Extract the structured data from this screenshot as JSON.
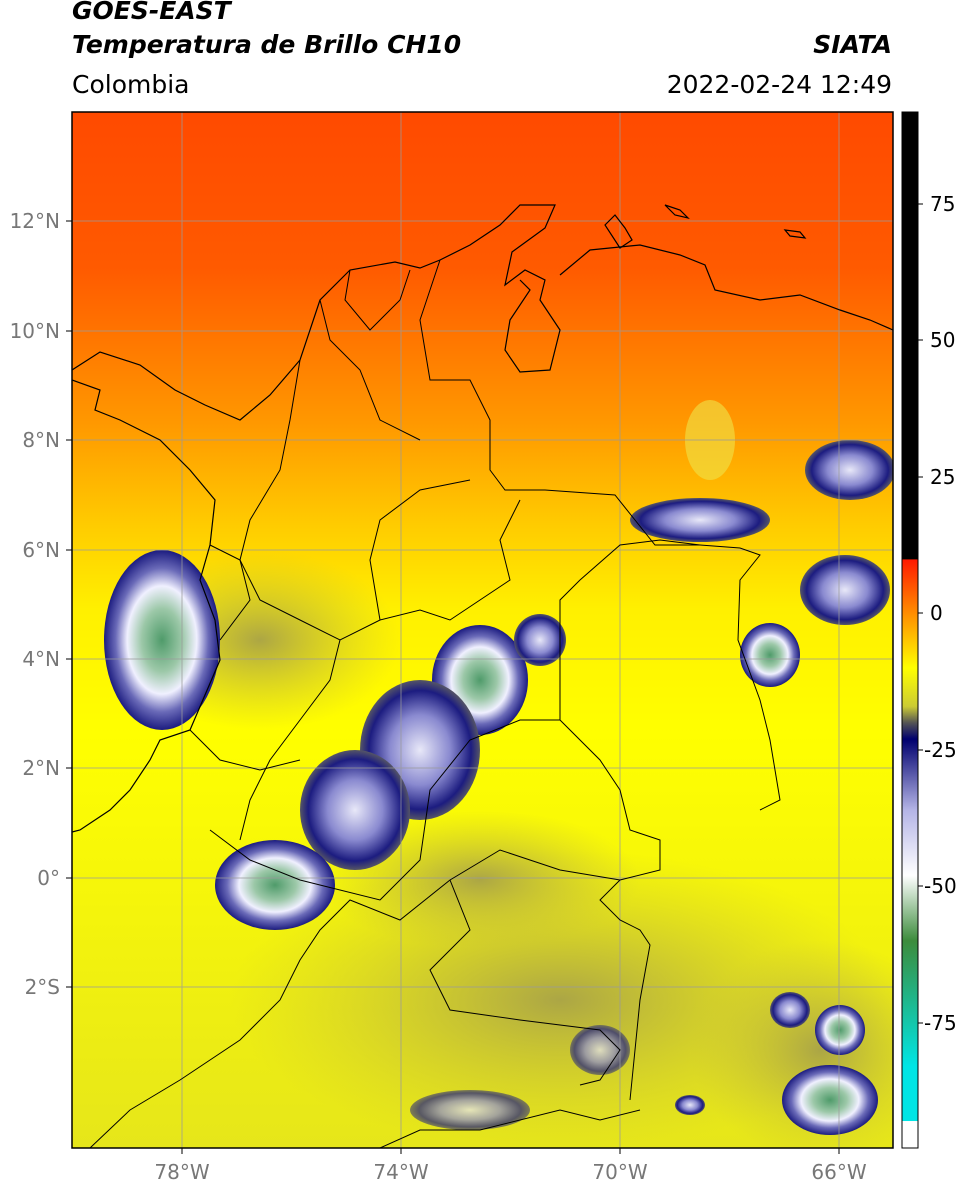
{
  "header": {
    "title_line1": "GOES-EAST",
    "title_line2": "Temperatura de Brillo CH10",
    "source": "SIATA",
    "region": "Colombia",
    "datetime": "2022-02-24 12:49"
  },
  "map": {
    "lat_labels": [
      "12°N",
      "10°N",
      "8°N",
      "6°N",
      "4°N",
      "2°N",
      "0°",
      "2°S"
    ],
    "lon_labels": [
      "78°W",
      "74°W",
      "70°W",
      "66°W"
    ],
    "lon_extent": [
      -80,
      -65
    ],
    "lat_extent": [
      -5.2,
      14
    ]
  },
  "colorbar": {
    "ticks": [
      "75",
      "50",
      "25",
      "0",
      "-25",
      "-50",
      "-75"
    ],
    "tick_values": [
      75,
      50,
      25,
      0,
      -25,
      -50,
      -75
    ],
    "range": [
      -100,
      90
    ],
    "stops": [
      {
        "v": 90,
        "c": "#000000"
      },
      {
        "v": 8,
        "c": "#000000"
      },
      {
        "v": 7.9,
        "c": "#ff1a00"
      },
      {
        "v": 0,
        "c": "#ff7700"
      },
      {
        "v": -12,
        "c": "#ffff00"
      },
      {
        "v": -19,
        "c": "#cccc33"
      },
      {
        "v": -22,
        "c": "#555555"
      },
      {
        "v": -25,
        "c": "#00006e"
      },
      {
        "v": -38,
        "c": "#b4b4e6"
      },
      {
        "v": -50,
        "c": "#ffffff"
      },
      {
        "v": -62,
        "c": "#3c8c3c"
      },
      {
        "v": -85,
        "c": "#00e5e5"
      },
      {
        "v": -95,
        "c": "#00e5e5"
      },
      {
        "v": -95.1,
        "c": "#ffffff"
      },
      {
        "v": -100,
        "c": "#ffffff"
      }
    ]
  },
  "colors": {
    "warm_top": "#ff4400",
    "yellow": "#ffff00",
    "olive": "#c9c23a",
    "navy": "#1c1c80",
    "cloud_white": "#eeeeff",
    "cloud_green": "#4f9b6a"
  }
}
